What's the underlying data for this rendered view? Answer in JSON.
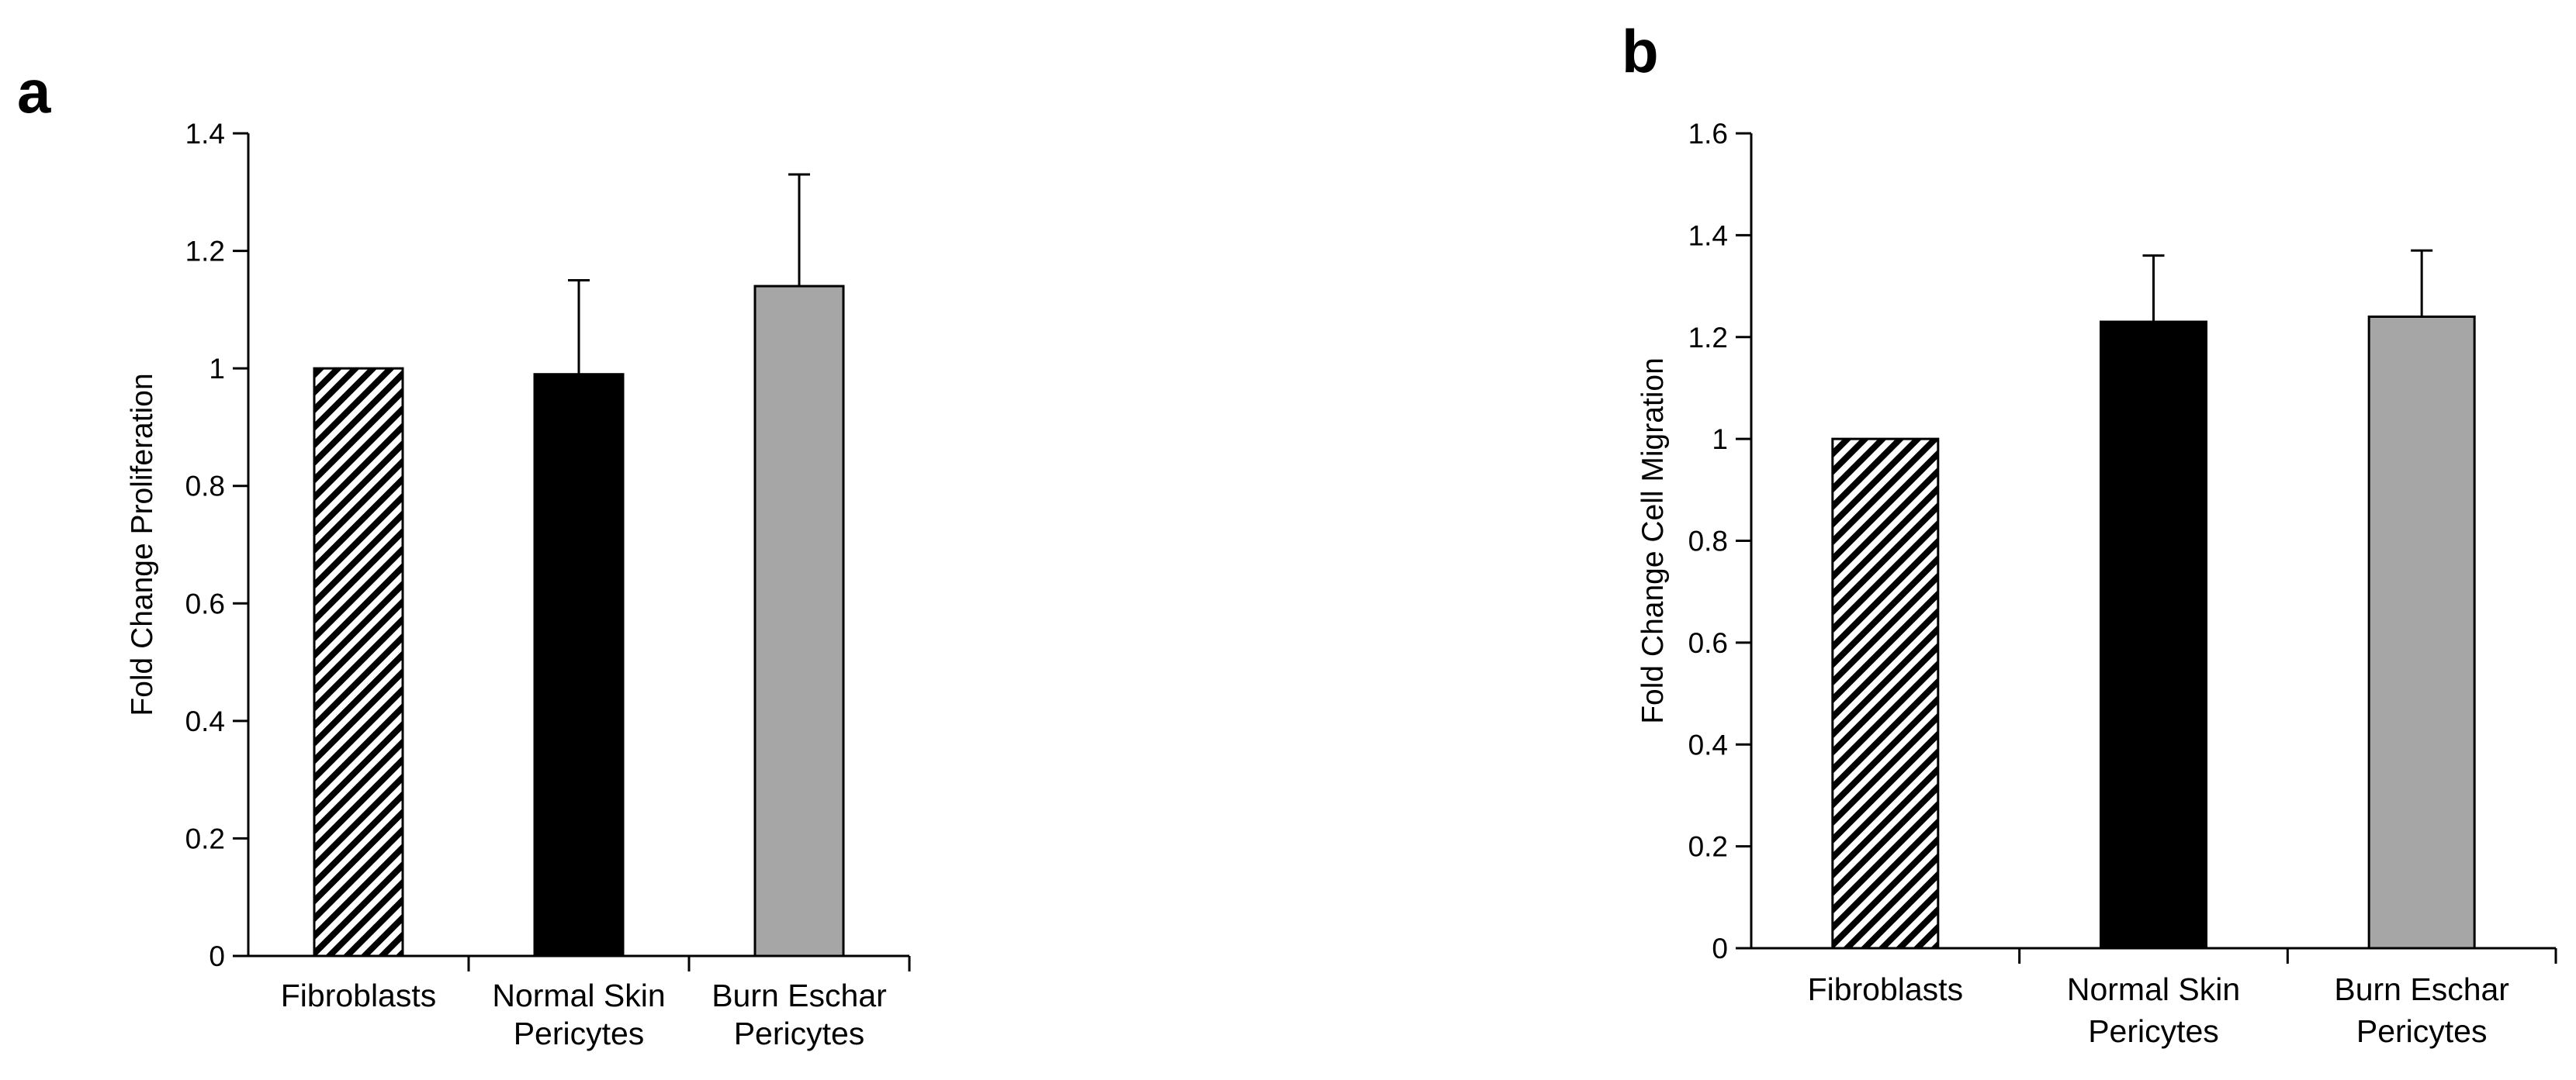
{
  "panels": [
    {
      "panel_label": "a"
    },
    {
      "panel_label": "b"
    }
  ],
  "colors": {
    "axis": "#000000",
    "fibroblasts_hatch": "#000000",
    "normal_skin_pericytes": "#000000",
    "burn_eschar_pericytes": "#a6a6a6"
  },
  "chart_data": [
    {
      "type": "bar",
      "title": "",
      "xlabel": "",
      "ylabel": "Fold Change Proliferation",
      "categories": [
        [
          "Fibroblasts"
        ],
        [
          "Normal Skin",
          "Pericytes"
        ],
        [
          "Burn Eschar",
          "Pericytes"
        ]
      ],
      "values": [
        1.0,
        0.99,
        1.14
      ],
      "error_plus": [
        0,
        0.16,
        0.19
      ],
      "fills": [
        "hatch",
        "black",
        "gray"
      ],
      "ylim": [
        0,
        1.4
      ],
      "yticks": [
        0,
        0.2,
        0.4,
        0.6,
        0.8,
        1,
        1.2,
        1.4
      ],
      "ytick_labels": [
        "0",
        "0.2",
        "0.4",
        "0.6",
        "0.8",
        "1",
        "1.2",
        "1.4"
      ],
      "grid": false,
      "legend": "none"
    },
    {
      "type": "bar",
      "title": "",
      "xlabel": "",
      "ylabel": "Fold Change Cell Migration",
      "categories": [
        [
          "Fibroblasts"
        ],
        [
          "Normal Skin",
          "Pericytes"
        ],
        [
          "Burn Eschar",
          "Pericytes"
        ]
      ],
      "values": [
        1.0,
        1.23,
        1.24
      ],
      "error_plus": [
        0,
        0.13,
        0.13
      ],
      "fills": [
        "hatch",
        "black",
        "gray"
      ],
      "ylim": [
        0,
        1.6
      ],
      "yticks": [
        0,
        0.2,
        0.4,
        0.6,
        0.8,
        1,
        1.2,
        1.4,
        1.6
      ],
      "ytick_labels": [
        "0",
        "0.2",
        "0.4",
        "0.6",
        "0.8",
        "1",
        "1.2",
        "1.4",
        "1.6"
      ],
      "grid": false,
      "legend": "none"
    }
  ]
}
